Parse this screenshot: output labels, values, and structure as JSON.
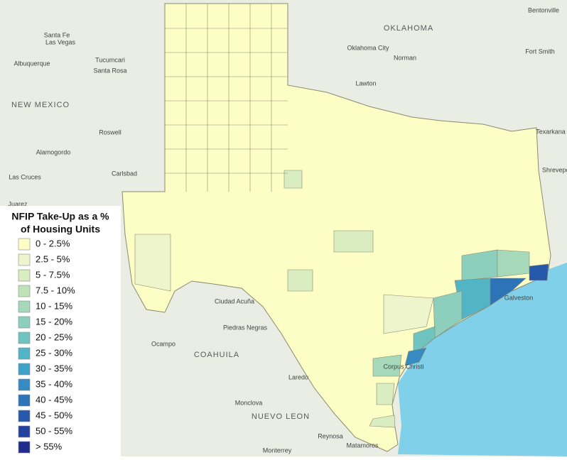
{
  "legend": {
    "title": [
      "NFIP Take-Up as a %",
      "of Housing Units"
    ],
    "items": [
      {
        "label": "0 - 2.5%",
        "color": "#fdfdc6"
      },
      {
        "label": "2.5 - 5%",
        "color": "#eef5cc"
      },
      {
        "label": "5 - 7.5%",
        "color": "#d9edc0"
      },
      {
        "label": "7.5 - 10%",
        "color": "#bfe2b8"
      },
      {
        "label": "10 - 15%",
        "color": "#a6d9b9"
      },
      {
        "label": "15 - 20%",
        "color": "#8ccfbc"
      },
      {
        "label": "20 - 25%",
        "color": "#6fc4c0"
      },
      {
        "label": "25 - 30%",
        "color": "#52b5c6"
      },
      {
        "label": "30 - 35%",
        "color": "#3fa2c8"
      },
      {
        "label": "35 - 40%",
        "color": "#358bc2"
      },
      {
        "label": "40 - 45%",
        "color": "#2c73b8"
      },
      {
        "label": "45 - 50%",
        "color": "#2659aa"
      },
      {
        "label": "50 - 55%",
        "color": "#2342a0"
      },
      {
        "label": "> 55%",
        "color": "#1f2d8f"
      }
    ]
  },
  "map_labels": {
    "regions": [
      "NEW MEXICO",
      "OKLAHOMA",
      "COAHUILA",
      "NUEVO LEON"
    ],
    "cities": [
      "Albuquerque",
      "Santa Fe",
      "Las Vegas",
      "Tucumcari",
      "Santa Rosa",
      "Roswell",
      "Carlsbad",
      "Las Cruces",
      "Juarez",
      "Alamogordo",
      "Oklahoma City",
      "Norman",
      "Lawton",
      "Bentonville",
      "Fort Smith",
      "Texarkana",
      "Shreveport",
      "Galveston",
      "Corpus Christi",
      "Laredo",
      "Ciudad Acuña",
      "Piedras Negras",
      "Ocampo",
      "Monclova",
      "Monterrey",
      "Reynosa",
      "Matamoros"
    ]
  }
}
